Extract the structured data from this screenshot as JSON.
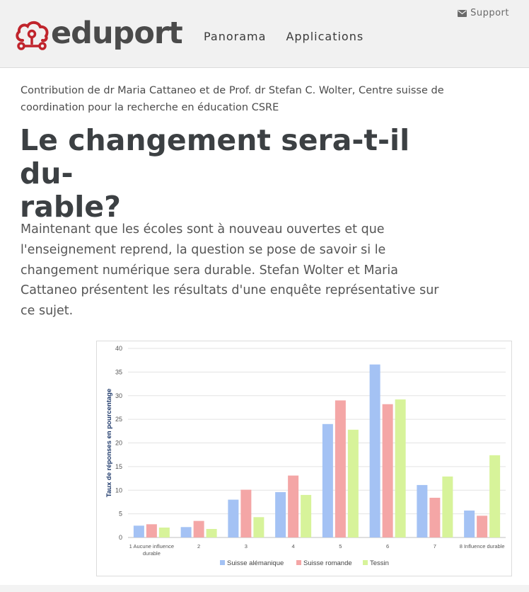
{
  "header": {
    "logo_text": "eduport",
    "nav": [
      "Panorama",
      "Applications"
    ],
    "support_label": "Support"
  },
  "article": {
    "contribution": "Contribution de dr Maria Cattaneo et de Prof. dr Stefan C. Wolter, Centre suisse de coordination pour la recherche en éducation CSRE",
    "title_line1": "Le changement sera-t-il du-",
    "title_line2": "rable?",
    "lead": "Maintenant que les écoles sont à nouveau ouvertes et que l'enseignement reprend, la question se pose de savoir si le changement numérique sera durable. Stefan Wolter et Maria Cattaneo présentent les résultats d'une enquête représentative sur ce sujet."
  },
  "colors": {
    "brand": "#c0242c",
    "suisse_alemanique": "#a4c2f4",
    "suisse_romande": "#f4a6a6",
    "tessin": "#d7f39a"
  },
  "chart_data": {
    "type": "bar",
    "title": "",
    "xlabel": "",
    "ylabel": "Taux de réponses en pourcentage",
    "ylim": [
      0,
      40
    ],
    "yticks": [
      0,
      5,
      10,
      15,
      20,
      25,
      30,
      35,
      40
    ],
    "categories": [
      "1 Aucune influence durable",
      "2",
      "3",
      "4",
      "5",
      "6",
      "7",
      "8 Influence durable"
    ],
    "series": [
      {
        "name": "Suisse alémanique",
        "values": [
          2.5,
          2.2,
          8.0,
          9.6,
          24.0,
          36.6,
          11.1,
          5.7
        ]
      },
      {
        "name": "Suisse romande",
        "values": [
          2.8,
          3.5,
          10.1,
          13.1,
          29.0,
          28.2,
          8.4,
          4.6
        ]
      },
      {
        "name": "Tessin",
        "values": [
          2.1,
          1.8,
          4.3,
          9.0,
          22.8,
          29.2,
          12.9,
          17.4
        ]
      }
    ],
    "legend_position": "bottom",
    "grid": true
  }
}
